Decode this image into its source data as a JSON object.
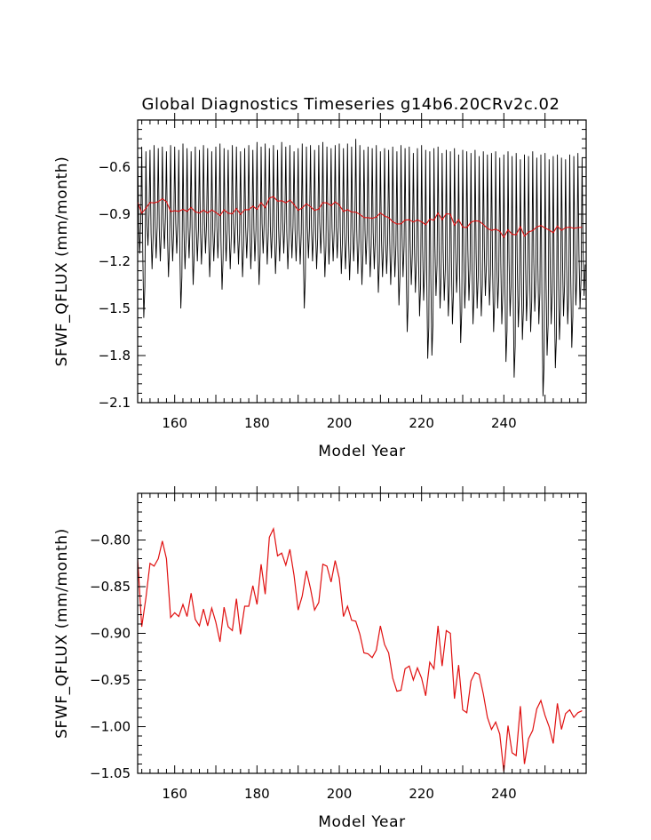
{
  "chart_data": [
    {
      "type": "line",
      "title": "Global Diagnostics Timeseries g14b6.20CRv2c.02",
      "xlabel": "Model Year",
      "ylabel": "SFWF_QFLUX (mm/month)",
      "xlim": [
        151,
        260
      ],
      "ylim": [
        -2.1,
        -0.3
      ],
      "xticks": [
        160,
        180,
        200,
        220,
        240
      ],
      "xtick_labels": [
        "160",
        "180",
        "200",
        "220",
        "240"
      ],
      "yticks": [
        -0.6,
        -0.9,
        -1.2,
        -1.5,
        -1.8,
        -2.1
      ],
      "ytick_labels": [
        "−0.6",
        "−0.9",
        "−1.2",
        "−1.5",
        "−1.8",
        "−2.1"
      ],
      "series": [
        {
          "color": "#000000",
          "monthly_envelope": {
            "x": [
              151,
              152,
              153,
              154,
              155,
              156,
              157,
              158,
              159,
              160,
              161,
              162,
              163,
              164,
              165,
              166,
              167,
              168,
              169,
              170,
              171,
              172,
              173,
              174,
              175,
              176,
              177,
              178,
              179,
              180,
              181,
              182,
              183,
              184,
              185,
              186,
              187,
              188,
              189,
              190,
              191,
              192,
              193,
              194,
              195,
              196,
              197,
              198,
              199,
              200,
              201,
              202,
              203,
              204,
              205,
              206,
              207,
              208,
              209,
              210,
              211,
              212,
              213,
              214,
              215,
              216,
              217,
              218,
              219,
              220,
              221,
              222,
              223,
              224,
              225,
              226,
              227,
              228,
              229,
              230,
              231,
              232,
              233,
              234,
              235,
              236,
              237,
              238,
              239,
              240,
              241,
              242,
              243,
              244,
              245,
              246,
              247,
              248,
              249,
              250,
              251,
              252,
              253,
              254,
              255,
              256,
              257,
              258,
              259
            ],
            "high": [
              -0.48,
              -0.47,
              -0.5,
              -0.49,
              -0.46,
              -0.48,
              -0.47,
              -0.5,
              -0.46,
              -0.47,
              -0.49,
              -0.45,
              -0.48,
              -0.5,
              -0.47,
              -0.49,
              -0.46,
              -0.48,
              -0.5,
              -0.47,
              -0.45,
              -0.48,
              -0.49,
              -0.46,
              -0.47,
              -0.5,
              -0.48,
              -0.46,
              -0.49,
              -0.44,
              -0.47,
              -0.45,
              -0.48,
              -0.46,
              -0.49,
              -0.44,
              -0.47,
              -0.46,
              -0.5,
              -0.48,
              -0.45,
              -0.47,
              -0.46,
              -0.49,
              -0.46,
              -0.44,
              -0.47,
              -0.48,
              -0.46,
              -0.45,
              -0.48,
              -0.45,
              -0.47,
              -0.42,
              -0.46,
              -0.49,
              -0.47,
              -0.48,
              -0.46,
              -0.5,
              -0.48,
              -0.49,
              -0.47,
              -0.5,
              -0.46,
              -0.48,
              -0.47,
              -0.51,
              -0.48,
              -0.46,
              -0.49,
              -0.5,
              -0.48,
              -0.47,
              -0.51,
              -0.49,
              -0.5,
              -0.48,
              -0.52,
              -0.49,
              -0.5,
              -0.51,
              -0.49,
              -0.53,
              -0.5,
              -0.52,
              -0.51,
              -0.5,
              -0.54,
              -0.52,
              -0.5,
              -0.53,
              -0.51,
              -0.55,
              -0.52,
              -0.53,
              -0.5,
              -0.54,
              -0.52,
              -0.51,
              -0.55,
              -0.53,
              -0.52,
              -0.54,
              -0.55,
              -0.52,
              -0.53,
              -0.51,
              -0.54
            ],
            "low": [
              -1.15,
              -1.56,
              -1.1,
              -1.25,
              -1.18,
              -1.2,
              -1.12,
              -1.3,
              -1.2,
              -1.15,
              -1.5,
              -1.25,
              -1.18,
              -1.35,
              -1.2,
              -1.22,
              -1.15,
              -1.3,
              -1.2,
              -1.18,
              -1.38,
              -1.2,
              -1.25,
              -1.15,
              -1.22,
              -1.3,
              -1.18,
              -1.25,
              -1.2,
              -1.35,
              -1.15,
              -1.22,
              -1.18,
              -1.28,
              -1.2,
              -1.15,
              -1.25,
              -1.18,
              -1.2,
              -1.22,
              -1.5,
              -1.18,
              -1.2,
              -1.25,
              -1.15,
              -1.3,
              -1.22,
              -1.2,
              -1.18,
              -1.28,
              -1.25,
              -1.32,
              -1.2,
              -1.28,
              -1.35,
              -1.22,
              -1.3,
              -1.25,
              -1.4,
              -1.3,
              -1.28,
              -1.35,
              -1.3,
              -1.48,
              -1.3,
              -1.65,
              -1.35,
              -1.4,
              -1.55,
              -1.45,
              -1.82,
              -1.8,
              -1.42,
              -1.5,
              -1.45,
              -1.55,
              -1.6,
              -1.4,
              -1.72,
              -1.5,
              -1.45,
              -1.6,
              -1.5,
              -1.55,
              -1.42,
              -1.48,
              -1.65,
              -1.5,
              -1.6,
              -1.84,
              -1.55,
              -1.94,
              -1.62,
              -1.7,
              -1.58,
              -1.65,
              -1.52,
              -1.6,
              -2.06,
              -1.8,
              -1.6,
              -1.88,
              -1.7,
              -1.55,
              -1.6,
              -1.75,
              -1.48,
              -1.5,
              -1.42
            ]
          }
        },
        {
          "color": "#e01010",
          "x": [
            151,
            152,
            153,
            154,
            155,
            156,
            157,
            158,
            159,
            160,
            161,
            162,
            163,
            164,
            165,
            166,
            167,
            168,
            169,
            170,
            171,
            172,
            173,
            174,
            175,
            176,
            177,
            178,
            179,
            180,
            181,
            182,
            183,
            184,
            185,
            186,
            187,
            188,
            189,
            190,
            191,
            192,
            193,
            194,
            195,
            196,
            197,
            198,
            199,
            200,
            201,
            202,
            203,
            204,
            205,
            206,
            207,
            208,
            209,
            210,
            211,
            212,
            213,
            214,
            215,
            216,
            217,
            218,
            219,
            220,
            221,
            222,
            223,
            224,
            225,
            226,
            227,
            228,
            229,
            230,
            231,
            232,
            233,
            234,
            235,
            236,
            237,
            238,
            239,
            240,
            241,
            242,
            243,
            244,
            245,
            246,
            247,
            248,
            249,
            250,
            251,
            252,
            253,
            254,
            255,
            256,
            257,
            258,
            259
          ],
          "values": [
            -0.82,
            -0.893,
            -0.862,
            -0.825,
            -0.828,
            -0.82,
            -0.801,
            -0.82,
            -0.883,
            -0.878,
            -0.882,
            -0.869,
            -0.882,
            -0.857,
            -0.885,
            -0.892,
            -0.874,
            -0.892,
            -0.873,
            -0.888,
            -0.909,
            -0.872,
            -0.893,
            -0.897,
            -0.863,
            -0.901,
            -0.871,
            -0.871,
            -0.849,
            -0.869,
            -0.826,
            -0.858,
            -0.797,
            -0.788,
            -0.817,
            -0.814,
            -0.827,
            -0.81,
            -0.838,
            -0.875,
            -0.86,
            -0.833,
            -0.852,
            -0.875,
            -0.867,
            -0.826,
            -0.828,
            -0.845,
            -0.822,
            -0.841,
            -0.882,
            -0.871,
            -0.886,
            -0.887,
            -0.901,
            -0.921,
            -0.922,
            -0.926,
            -0.918,
            -0.892,
            -0.912,
            -0.921,
            -0.948,
            -0.962,
            -0.961,
            -0.938,
            -0.935,
            -0.95,
            -0.937,
            -0.948,
            -0.967,
            -0.931,
            -0.938,
            -0.892,
            -0.935,
            -0.897,
            -0.9,
            -0.97,
            -0.934,
            -0.982,
            -0.985,
            -0.951,
            -0.942,
            -0.944,
            -0.965,
            -0.99,
            -1.003,
            -0.995,
            -1.008,
            -1.048,
            -0.999,
            -1.028,
            -1.031,
            -0.978,
            -1.04,
            -1.013,
            -1.004,
            -0.981,
            -0.972,
            -0.988,
            -1.0,
            -1.018,
            -0.975,
            -1.003,
            -0.986,
            -0.982,
            -0.99,
            -0.985,
            -0.983
          ]
        }
      ]
    },
    {
      "type": "line",
      "title": "",
      "xlabel": "Model Year",
      "ylabel": "SFWF_QFLUX (mm/month)",
      "xlim": [
        151,
        260
      ],
      "ylim": [
        -1.05,
        -0.75
      ],
      "xticks": [
        160,
        180,
        200,
        220,
        240
      ],
      "xtick_labels": [
        "160",
        "180",
        "200",
        "220",
        "240"
      ],
      "yticks": [
        -0.8,
        -0.85,
        -0.9,
        -0.95,
        -1.0,
        -1.05
      ],
      "ytick_labels": [
        "−0.80",
        "−0.85",
        "−0.90",
        "−0.95",
        "−1.00",
        "−1.05"
      ],
      "series": [
        {
          "color": "#e01010",
          "x": [
            151,
            152,
            153,
            154,
            155,
            156,
            157,
            158,
            159,
            160,
            161,
            162,
            163,
            164,
            165,
            166,
            167,
            168,
            169,
            170,
            171,
            172,
            173,
            174,
            175,
            176,
            177,
            178,
            179,
            180,
            181,
            182,
            183,
            184,
            185,
            186,
            187,
            188,
            189,
            190,
            191,
            192,
            193,
            194,
            195,
            196,
            197,
            198,
            199,
            200,
            201,
            202,
            203,
            204,
            205,
            206,
            207,
            208,
            209,
            210,
            211,
            212,
            213,
            214,
            215,
            216,
            217,
            218,
            219,
            220,
            221,
            222,
            223,
            224,
            225,
            226,
            227,
            228,
            229,
            230,
            231,
            232,
            233,
            234,
            235,
            236,
            237,
            238,
            239,
            240,
            241,
            242,
            243,
            244,
            245,
            246,
            247,
            248,
            249,
            250,
            251,
            252,
            253,
            254,
            255,
            256,
            257,
            258,
            259
          ],
          "values": [
            -0.82,
            -0.893,
            -0.862,
            -0.825,
            -0.828,
            -0.82,
            -0.801,
            -0.82,
            -0.883,
            -0.878,
            -0.882,
            -0.869,
            -0.882,
            -0.857,
            -0.885,
            -0.892,
            -0.874,
            -0.892,
            -0.873,
            -0.888,
            -0.909,
            -0.872,
            -0.893,
            -0.897,
            -0.863,
            -0.901,
            -0.871,
            -0.871,
            -0.849,
            -0.869,
            -0.826,
            -0.858,
            -0.797,
            -0.788,
            -0.817,
            -0.814,
            -0.827,
            -0.81,
            -0.838,
            -0.875,
            -0.86,
            -0.833,
            -0.852,
            -0.875,
            -0.867,
            -0.826,
            -0.828,
            -0.845,
            -0.822,
            -0.841,
            -0.882,
            -0.871,
            -0.886,
            -0.887,
            -0.901,
            -0.921,
            -0.922,
            -0.926,
            -0.918,
            -0.892,
            -0.912,
            -0.921,
            -0.948,
            -0.962,
            -0.961,
            -0.938,
            -0.935,
            -0.95,
            -0.937,
            -0.948,
            -0.967,
            -0.931,
            -0.938,
            -0.892,
            -0.935,
            -0.897,
            -0.9,
            -0.97,
            -0.934,
            -0.982,
            -0.985,
            -0.951,
            -0.942,
            -0.944,
            -0.965,
            -0.99,
            -1.003,
            -0.995,
            -1.008,
            -1.048,
            -0.999,
            -1.028,
            -1.031,
            -0.978,
            -1.04,
            -1.013,
            -1.004,
            -0.981,
            -0.972,
            -0.988,
            -1.0,
            -1.018,
            -0.975,
            -1.003,
            -0.986,
            -0.982,
            -0.99,
            -0.985,
            -0.983
          ]
        }
      ]
    }
  ]
}
